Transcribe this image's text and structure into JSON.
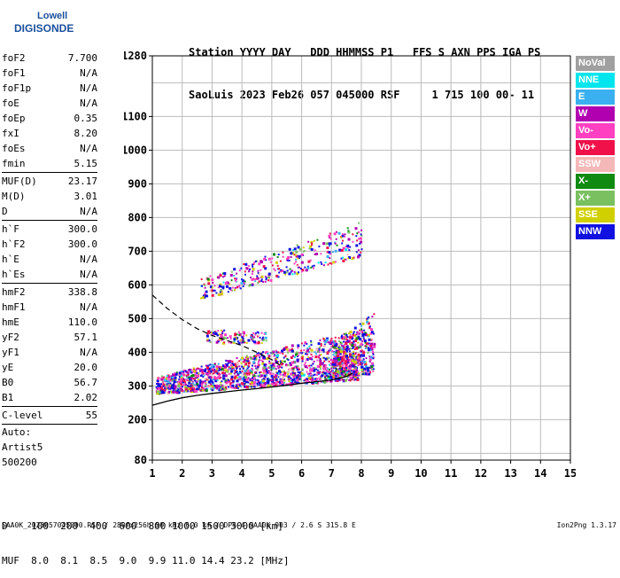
{
  "logo": {
    "line1": "Lowell",
    "line2": "DIGISONDE"
  },
  "header": {
    "line1": "Station YYYY DAY   DDD HHMMSS P1   FFS S AXN PPS IGA PS",
    "line2": "SaoLuis 2023 Feb26 057 045000 RSF     1 715 100 00- 11"
  },
  "params": [
    {
      "name": "foF2",
      "value": "7.700"
    },
    {
      "name": "foF1",
      "value": "N/A"
    },
    {
      "name": "foF1p",
      "value": "N/A"
    },
    {
      "name": "foE",
      "value": "N/A"
    },
    {
      "name": "foEp",
      "value": "0.35"
    },
    {
      "name": "fxI",
      "value": "8.20"
    },
    {
      "name": "foEs",
      "value": "N/A"
    },
    {
      "name": "fmin",
      "value": "5.15"
    },
    {
      "sep": true
    },
    {
      "name": "MUF(D)",
      "value": "23.17"
    },
    {
      "name": "M(D)",
      "value": "3.01"
    },
    {
      "name": "D",
      "value": "N/A"
    },
    {
      "sep": true
    },
    {
      "name": "h`F",
      "value": "300.0"
    },
    {
      "name": "h`F2",
      "value": "300.0"
    },
    {
      "name": "h`E",
      "value": "N/A"
    },
    {
      "name": "h`Es",
      "value": "N/A"
    },
    {
      "sep": true
    },
    {
      "name": "hmF2",
      "value": "338.8"
    },
    {
      "name": "hmF1",
      "value": "N/A"
    },
    {
      "name": "hmE",
      "value": "110.0"
    },
    {
      "name": "yF2",
      "value": "57.1"
    },
    {
      "name": "yF1",
      "value": "N/A"
    },
    {
      "name": "yE",
      "value": "20.0"
    },
    {
      "name": "B0",
      "value": "56.7"
    },
    {
      "name": "B1",
      "value": "2.02"
    },
    {
      "sep": true
    },
    {
      "name": "C-level",
      "value": "55"
    },
    {
      "sep": true
    }
  ],
  "auto": {
    "line1": "Auto:",
    "line2": "Artist5",
    "line3": "500200"
  },
  "legend": [
    {
      "label": "NoVal",
      "color": "#a0a0a0"
    },
    {
      "label": "NNE",
      "color": "#00e5ee"
    },
    {
      "label": "E",
      "color": "#3ab0f0"
    },
    {
      "label": "W",
      "color": "#b000b0"
    },
    {
      "label": "Vo-",
      "color": "#ff40c0"
    },
    {
      "label": "Vo+",
      "color": "#f0104a"
    },
    {
      "label": "SSW",
      "color": "#f5b8b8"
    },
    {
      "label": "X-",
      "color": "#108a10"
    },
    {
      "label": "X+",
      "color": "#7ac060"
    },
    {
      "label": "SSE",
      "color": "#d0d000"
    },
    {
      "label": "NNW",
      "color": "#1010e0"
    }
  ],
  "dtable": {
    "line1": "D    100  200  400  600  800 1000 1500 3000 [km]",
    "line2": "MUF  8.0  8.1  8.5  9.0  9.9 11.0 14.4 23.2 [MHz]"
  },
  "footer": {
    "text": "SAA0K_2023057045000.RSF / 280fx256h 50 kHz 5.0 km / DPS-4 SAA0K 903 / 2.6 S 315.8 E",
    "version": "Ion2Png 1.3.17"
  },
  "chart_data": {
    "type": "scatter",
    "xlim": [
      1,
      15
    ],
    "ylim": [
      80,
      1280
    ],
    "x_ticks": [
      1,
      2,
      3,
      4,
      5,
      6,
      7,
      8,
      9,
      10,
      11,
      12,
      13,
      14,
      15
    ],
    "y_ticks": [
      80,
      200,
      300,
      400,
      500,
      600,
      700,
      800,
      900,
      1000,
      1100,
      1280
    ],
    "grid": true,
    "profile_curve": {
      "x": [
        1.0,
        1.5,
        2.0,
        2.5,
        3.0,
        3.5,
        4.0,
        4.5,
        5.0,
        5.5,
        6.0,
        6.5,
        7.0,
        7.5,
        7.7
      ],
      "y": [
        243,
        255,
        265,
        272,
        278,
        283,
        288,
        292,
        297,
        302,
        308,
        313,
        318,
        328,
        338
      ]
    },
    "dashed_curve": {
      "x": [
        1.0,
        1.5,
        2.0,
        2.5,
        3.0,
        3.5,
        4.0,
        4.5,
        5.0,
        5.3
      ],
      "y": [
        570,
        530,
        497,
        470,
        450,
        435,
        420,
        400,
        378,
        360
      ]
    },
    "echo_regions": [
      {
        "name": "F-trace",
        "x0": 1.1,
        "x1": 7.9,
        "y0_start": 280,
        "y1_start": 330,
        "y0_end": 320,
        "y1_end": 470,
        "density": 1600
      },
      {
        "name": "F-blob",
        "x0": 7.0,
        "x1": 8.4,
        "y0_start": 330,
        "y1_start": 430,
        "y0_end": 340,
        "y1_end": 520,
        "density": 400
      },
      {
        "name": "2F-trace",
        "x0": 2.6,
        "x1": 8.0,
        "y0_start": 560,
        "y1_start": 620,
        "y0_end": 690,
        "y1_end": 790,
        "density": 350
      },
      {
        "name": "early-patch",
        "x0": 2.8,
        "x1": 4.8,
        "y0_start": 430,
        "y1_start": 470,
        "y0_end": 430,
        "y1_end": 465,
        "density": 120
      }
    ]
  }
}
